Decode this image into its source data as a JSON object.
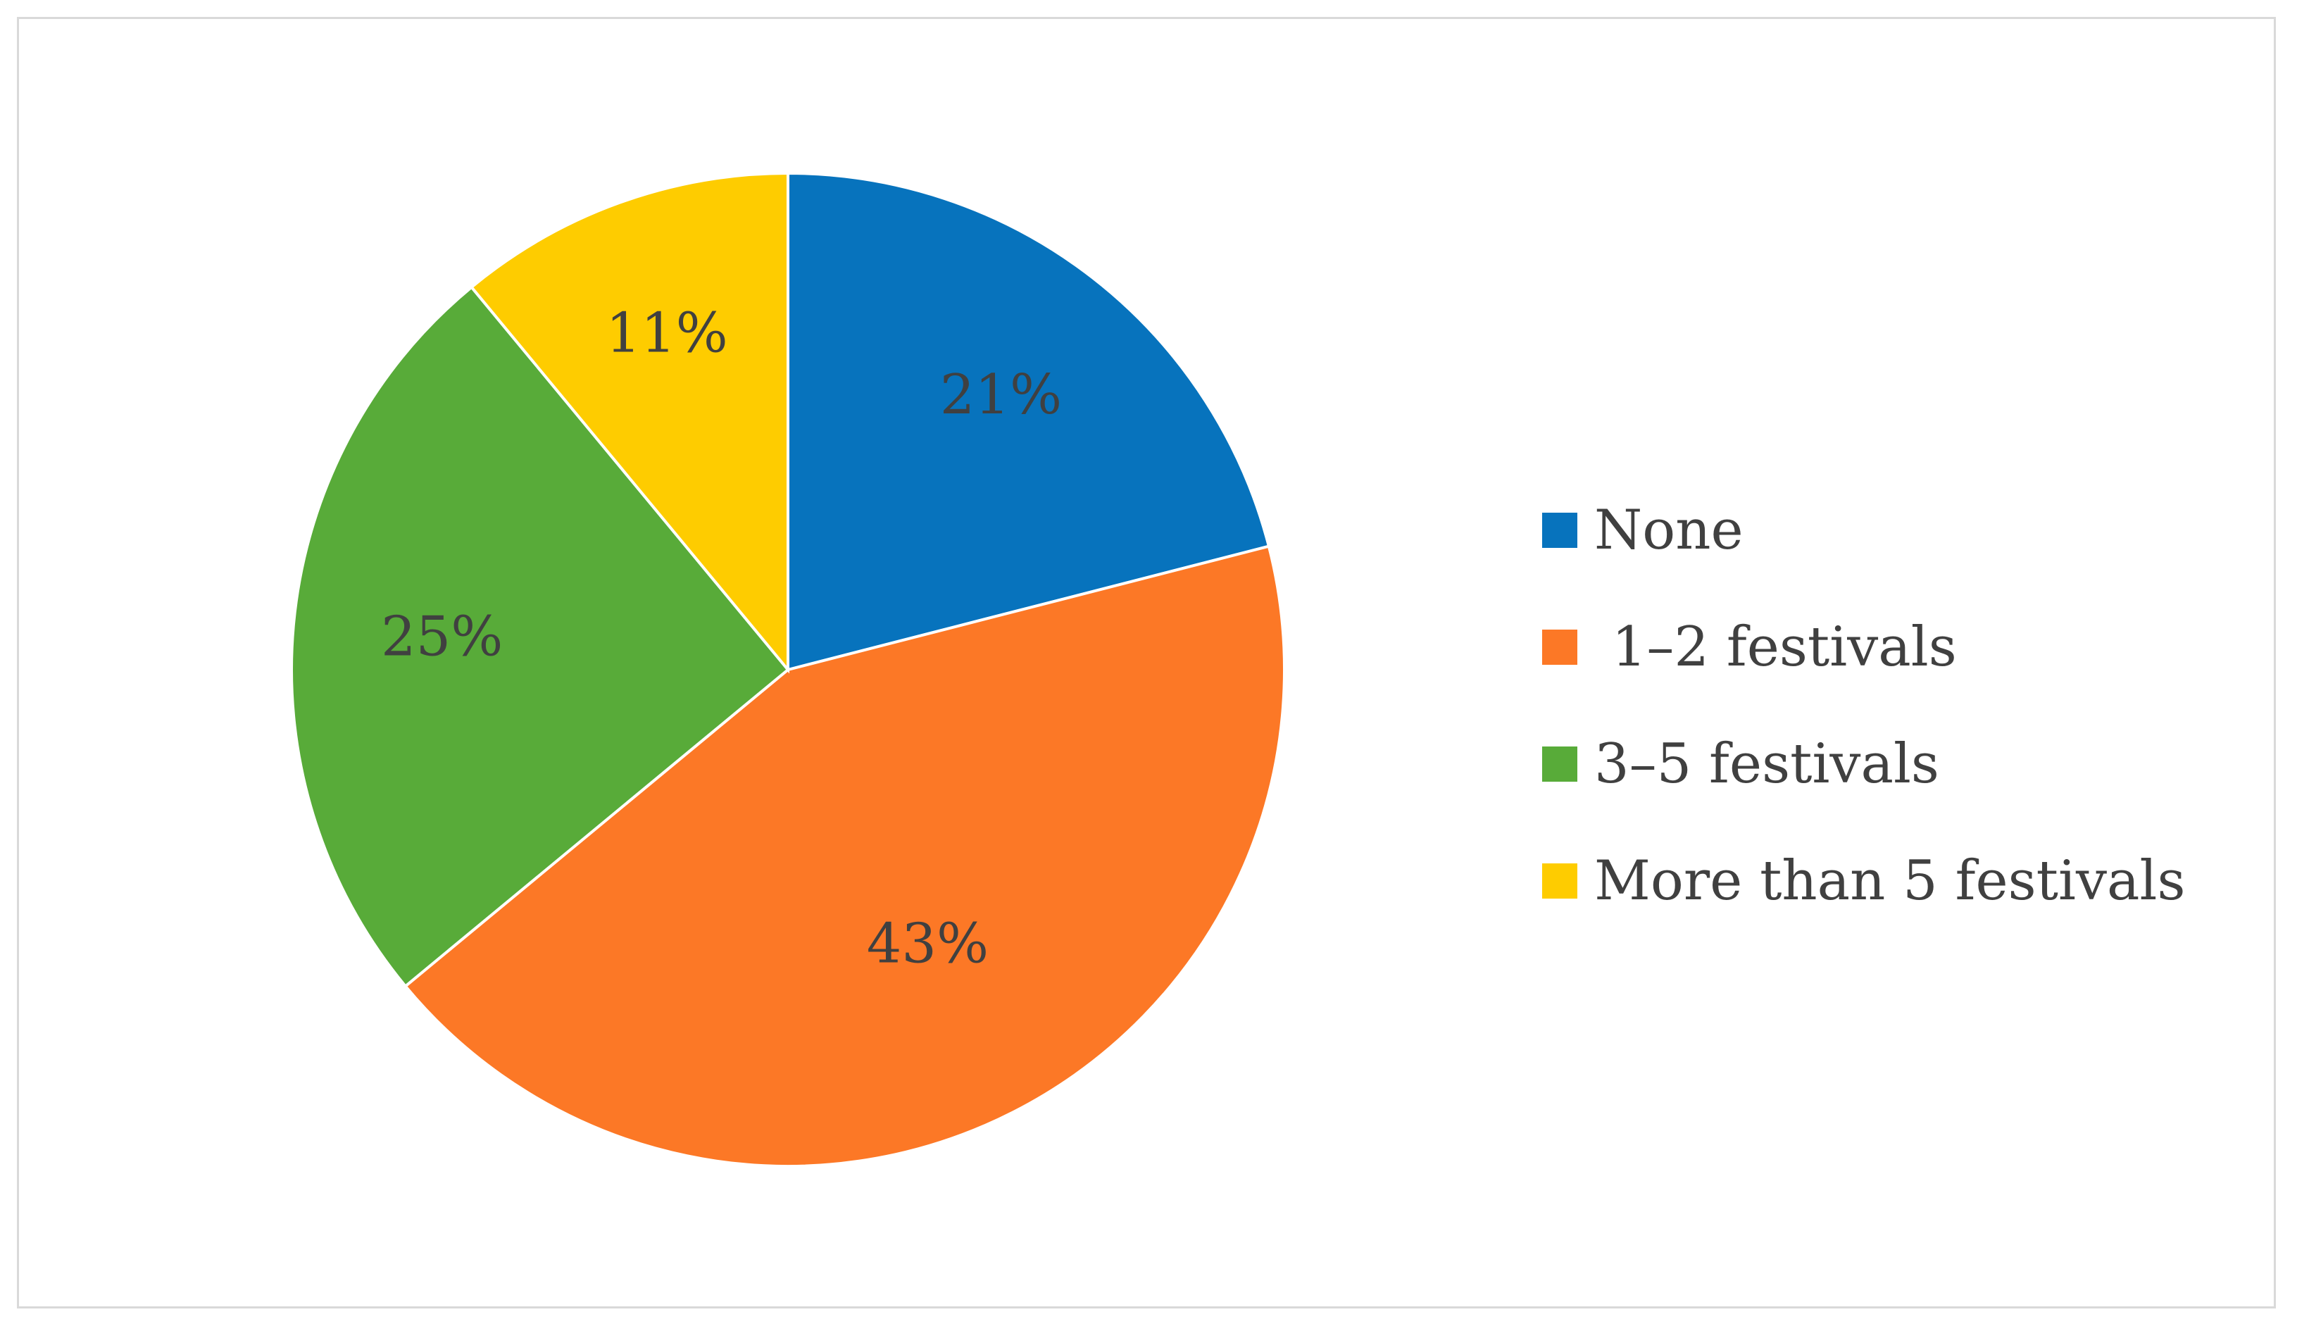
{
  "chart_data": {
    "type": "pie",
    "categories": [
      "None",
      " 1–2 festivals",
      "3–5 festivals",
      "More than 5 festivals"
    ],
    "values": [
      21,
      43,
      25,
      11
    ],
    "data_labels": [
      "21%",
      "43%",
      "25%",
      "11%"
    ],
    "colors": [
      "#0773bd",
      "#fc7826",
      "#58ab39",
      "#fecc00"
    ],
    "start_angle": "12 o'clock",
    "direction": "clockwise",
    "legend_position": "right"
  }
}
